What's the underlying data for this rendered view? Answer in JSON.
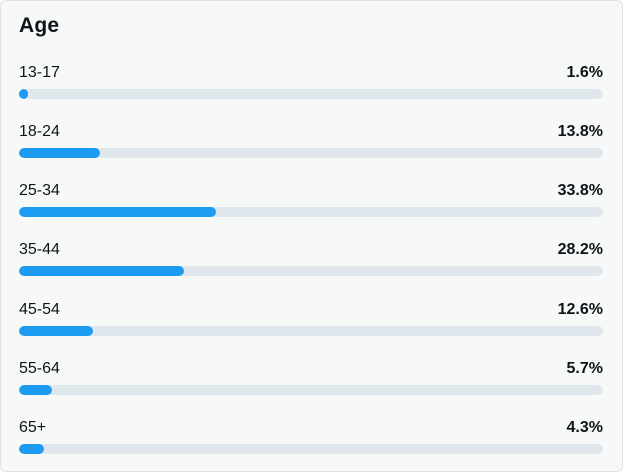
{
  "panel": {
    "title": "Age",
    "bar_color": "#1d9bf0",
    "track_color": "#e1e8ed",
    "rows": [
      {
        "label": "13-17",
        "value_text": "1.6%",
        "value": 1.6
      },
      {
        "label": "18-24",
        "value_text": "13.8%",
        "value": 13.8
      },
      {
        "label": "25-34",
        "value_text": "33.8%",
        "value": 33.8
      },
      {
        "label": "35-44",
        "value_text": "28.2%",
        "value": 28.2
      },
      {
        "label": "45-54",
        "value_text": "12.6%",
        "value": 12.6
      },
      {
        "label": "55-64",
        "value_text": "5.7%",
        "value": 5.7
      },
      {
        "label": "65+",
        "value_text": "4.3%",
        "value": 4.3
      }
    ]
  }
}
